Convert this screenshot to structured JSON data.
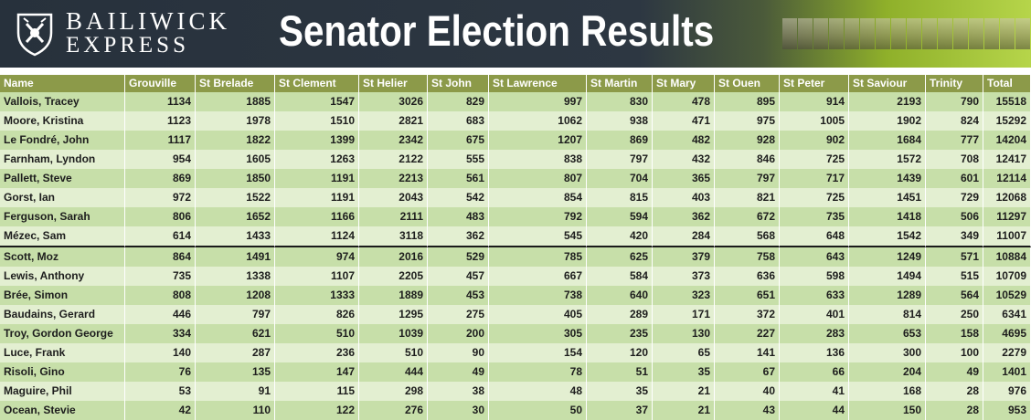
{
  "header": {
    "logo_line1": "BAILIWICK",
    "logo_line2": "EXPRESS",
    "title": "Senator Election Results"
  },
  "icons": {
    "logo": "crest-icon",
    "photos": "candidate-photos-strip"
  },
  "colors": {
    "banner_dark": "#27313c",
    "banner_green": "#b6d54a",
    "header_row": "#8c9a49",
    "row_dark": "#c7dfa9",
    "row_light": "#e3efd1"
  },
  "table": {
    "columns": [
      "Name",
      "Grouville",
      "St Brelade",
      "St Clement",
      "St Helier",
      "St John",
      "St Lawrence",
      "St Martin",
      "St Mary",
      "St Ouen",
      "St Peter",
      "St Saviour",
      "Trinity",
      "Total"
    ],
    "cutoff_after_row": 8,
    "rows": [
      [
        "Vallois, Tracey",
        "1134",
        "1885",
        "1547",
        "3026",
        "829",
        "997",
        "830",
        "478",
        "895",
        "914",
        "2193",
        "790",
        "15518"
      ],
      [
        "Moore, Kristina",
        "1123",
        "1978",
        "1510",
        "2821",
        "683",
        "1062",
        "938",
        "471",
        "975",
        "1005",
        "1902",
        "824",
        "15292"
      ],
      [
        "Le Fondré, John",
        "1117",
        "1822",
        "1399",
        "2342",
        "675",
        "1207",
        "869",
        "482",
        "928",
        "902",
        "1684",
        "777",
        "14204"
      ],
      [
        "Farnham, Lyndon",
        "954",
        "1605",
        "1263",
        "2122",
        "555",
        "838",
        "797",
        "432",
        "846",
        "725",
        "1572",
        "708",
        "12417"
      ],
      [
        "Pallett, Steve",
        "869",
        "1850",
        "1191",
        "2213",
        "561",
        "807",
        "704",
        "365",
        "797",
        "717",
        "1439",
        "601",
        "12114"
      ],
      [
        "Gorst, Ian",
        "972",
        "1522",
        "1191",
        "2043",
        "542",
        "854",
        "815",
        "403",
        "821",
        "725",
        "1451",
        "729",
        "12068"
      ],
      [
        "Ferguson, Sarah",
        "806",
        "1652",
        "1166",
        "2111",
        "483",
        "792",
        "594",
        "362",
        "672",
        "735",
        "1418",
        "506",
        "11297"
      ],
      [
        "Mézec, Sam",
        "614",
        "1433",
        "1124",
        "3118",
        "362",
        "545",
        "420",
        "284",
        "568",
        "648",
        "1542",
        "349",
        "11007"
      ],
      [
        "Scott, Moz",
        "864",
        "1491",
        "974",
        "2016",
        "529",
        "785",
        "625",
        "379",
        "758",
        "643",
        "1249",
        "571",
        "10884"
      ],
      [
        "Lewis, Anthony",
        "735",
        "1338",
        "1107",
        "2205",
        "457",
        "667",
        "584",
        "373",
        "636",
        "598",
        "1494",
        "515",
        "10709"
      ],
      [
        "Brée, Simon",
        "808",
        "1208",
        "1333",
        "1889",
        "453",
        "738",
        "640",
        "323",
        "651",
        "633",
        "1289",
        "564",
        "10529"
      ],
      [
        "Baudains, Gerard",
        "446",
        "797",
        "826",
        "1295",
        "275",
        "405",
        "289",
        "171",
        "372",
        "401",
        "814",
        "250",
        "6341"
      ],
      [
        "Troy, Gordon George",
        "334",
        "621",
        "510",
        "1039",
        "200",
        "305",
        "235",
        "130",
        "227",
        "283",
        "653",
        "158",
        "4695"
      ],
      [
        "Luce, Frank",
        "140",
        "287",
        "236",
        "510",
        "90",
        "154",
        "120",
        "65",
        "141",
        "136",
        "300",
        "100",
        "2279"
      ],
      [
        "Risoli, Gino",
        "76",
        "135",
        "147",
        "444",
        "49",
        "78",
        "51",
        "35",
        "67",
        "66",
        "204",
        "49",
        "1401"
      ],
      [
        "Maguire, Phil",
        "53",
        "91",
        "115",
        "298",
        "38",
        "48",
        "35",
        "21",
        "40",
        "41",
        "168",
        "28",
        "976"
      ],
      [
        "Ocean, Stevie",
        "42",
        "110",
        "122",
        "276",
        "30",
        "50",
        "37",
        "21",
        "43",
        "44",
        "150",
        "28",
        "953"
      ]
    ]
  }
}
